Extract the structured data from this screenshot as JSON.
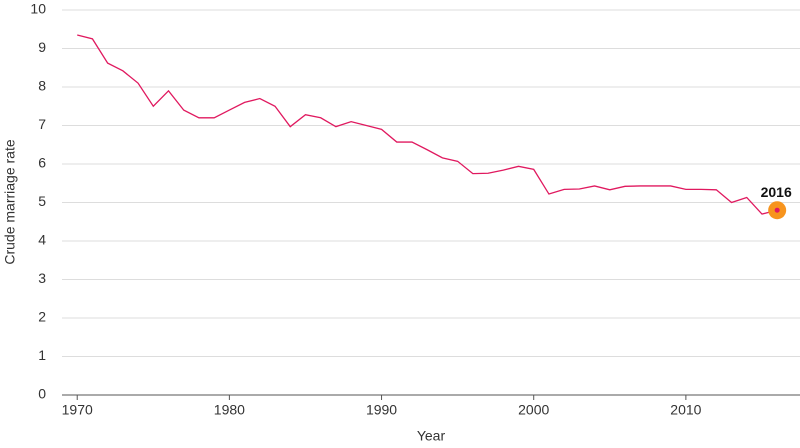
{
  "chart_data": {
    "type": "line",
    "x_label": "Year",
    "y_label": "Crude marriage rate",
    "x": [
      1970,
      1971,
      1972,
      1973,
      1974,
      1975,
      1976,
      1977,
      1978,
      1979,
      1980,
      1981,
      1982,
      1983,
      1984,
      1985,
      1986,
      1987,
      1988,
      1989,
      1990,
      1991,
      1992,
      1993,
      1994,
      1995,
      1996,
      1997,
      1998,
      1999,
      2000,
      2001,
      2002,
      2003,
      2004,
      2005,
      2006,
      2007,
      2008,
      2009,
      2010,
      2011,
      2012,
      2013,
      2014,
      2015,
      2016
    ],
    "series": [
      {
        "name": "Crude marriage rate",
        "color": "#e0195f",
        "values": [
          9.35,
          9.25,
          8.62,
          8.42,
          8.1,
          7.5,
          7.9,
          7.4,
          7.2,
          7.2,
          7.4,
          7.6,
          7.7,
          7.5,
          6.97,
          7.28,
          7.2,
          6.97,
          7.1,
          7.0,
          6.9,
          6.57,
          6.57,
          6.37,
          6.16,
          6.07,
          5.75,
          5.76,
          5.84,
          5.94,
          5.86,
          5.22,
          5.34,
          5.35,
          5.43,
          5.33,
          5.42,
          5.43,
          5.43,
          5.43,
          5.34,
          5.34,
          5.33,
          5.0,
          5.13,
          4.7,
          4.8
        ]
      }
    ],
    "annotation": {
      "text": "2016",
      "x": 2016,
      "color": "#f7941d"
    },
    "xlim": [
      1969,
      2017.5
    ],
    "xticks": [
      1970,
      1980,
      1990,
      2000,
      2010
    ],
    "ylim": [
      0,
      10
    ],
    "yticks": [
      0,
      1,
      2,
      3,
      4,
      5,
      6,
      7,
      8,
      9,
      10
    ],
    "grid": true
  }
}
